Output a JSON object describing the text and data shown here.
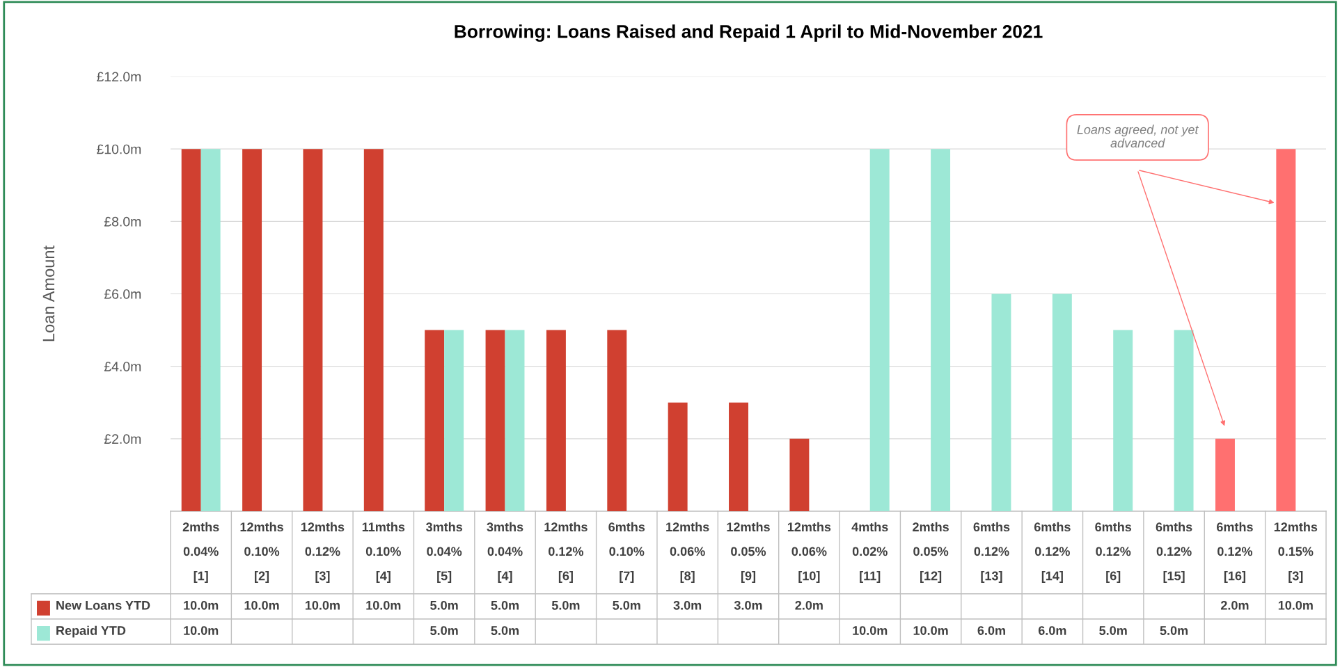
{
  "chart_data": {
    "type": "bar",
    "title": "Borrowing: Loans Raised and Repaid 1 April to Mid-November 2021",
    "ylabel": "Loan Amount",
    "categories": [
      "2mths\n0.04%\n[1]",
      "12mths\n0.10%\n[2]",
      "12mths\n0.12%\n[3]",
      "11mths\n0.10%\n[4]",
      "3mths\n0.04%\n[5]",
      "3mths\n0.04%\n[4]",
      "12mths\n0.12%\n[6]",
      "6mths\n0.10%\n[7]",
      "12mths\n0.06%\n[8]",
      "12mths\n0.05%\n[9]",
      "12mths\n0.06%\n[10]",
      "4mths\n0.02%\n[11]",
      "2mths\n0.05%\n[12]",
      "6mths\n0.12%\n[13]",
      "6mths\n0.12%\n[14]",
      "6mths\n0.12%\n[6]",
      "6mths\n0.12%\n[15]",
      "6mths\n0.12%\n[16]",
      "12mths\n0.15%\n[3]"
    ],
    "series": [
      {
        "name": "New Loans YTD",
        "color": "#d04030",
        "colors": [
          "#d04030",
          "#d04030",
          "#d04030",
          "#d04030",
          "#d04030",
          "#d04030",
          "#d04030",
          "#d04030",
          "#d04030",
          "#d04030",
          "#d04030",
          "#d04030",
          "#d04030",
          "#d04030",
          "#d04030",
          "#d04030",
          "#d04030",
          "#ff7070",
          "#ff7070"
        ],
        "values": [
          10,
          10,
          10,
          10,
          5,
          5,
          5,
          5,
          3,
          3,
          2,
          null,
          null,
          null,
          null,
          null,
          null,
          2,
          10
        ],
        "value_labels": [
          "10.0m",
          "10.0m",
          "10.0m",
          "10.0m",
          "5.0m",
          "5.0m",
          "5.0m",
          "5.0m",
          "3.0m",
          "3.0m",
          "2.0m",
          null,
          null,
          null,
          null,
          null,
          null,
          "2.0m",
          "10.0m"
        ]
      },
      {
        "name": "Repaid YTD",
        "color": "#9de8d6",
        "values": [
          10,
          null,
          null,
          null,
          5,
          5,
          null,
          null,
          null,
          null,
          null,
          10,
          10,
          6,
          6,
          5,
          5,
          null,
          null
        ],
        "value_labels": [
          "10.0m",
          null,
          null,
          null,
          "5.0m",
          "5.0m",
          null,
          null,
          null,
          null,
          null,
          "10.0m",
          "10.0m",
          "6.0m",
          "6.0m",
          "5.0m",
          "5.0m",
          null,
          null
        ]
      }
    ],
    "ylim": [
      0,
      12
    ],
    "yticks": [
      {
        "value": 2,
        "label": "£2.0m"
      },
      {
        "value": 4,
        "label": "£4.0m"
      },
      {
        "value": 6,
        "label": "£6.0m"
      },
      {
        "value": 8,
        "label": "£8.0m"
      },
      {
        "value": 10,
        "label": "£10.0m"
      },
      {
        "value": 12,
        "label": "£12.0m"
      }
    ],
    "grid": "y",
    "legend": "bottom left",
    "annotations": [
      "Loans agreed, not yet advanced"
    ]
  }
}
